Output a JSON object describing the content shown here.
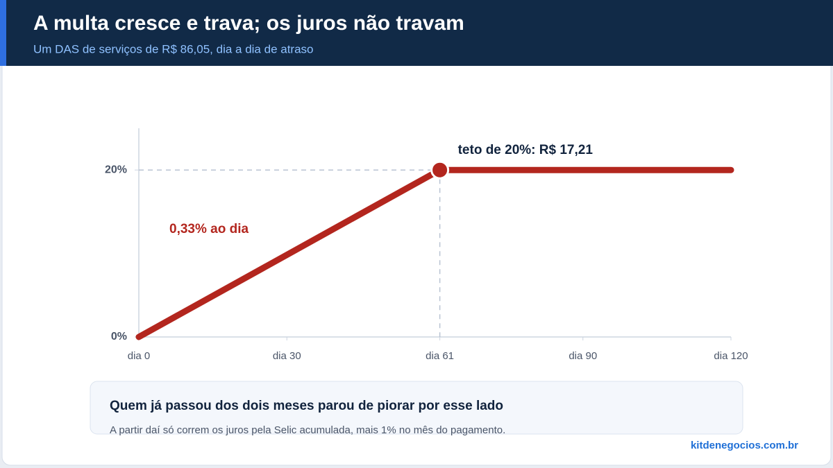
{
  "header": {
    "title": "A multa cresce e trava; os juros não travam",
    "subtitle": "Um DAS de serviços de R$ 86,05, dia a dia de atraso"
  },
  "chart_data": {
    "type": "line",
    "x": [
      0,
      61,
      120
    ],
    "values": [
      0,
      20,
      20
    ],
    "color": "#b3261e",
    "xlim": [
      0,
      120
    ],
    "ylim": [
      0,
      25
    ],
    "xticks": [
      {
        "value": 0,
        "label": "dia 0"
      },
      {
        "value": 30,
        "label": "dia 30"
      },
      {
        "value": 61,
        "label": "dia 61"
      },
      {
        "value": 90,
        "label": "dia 90"
      },
      {
        "value": 120,
        "label": "dia 120"
      }
    ],
    "yticks": [
      {
        "value": 0,
        "label": "0%"
      },
      {
        "value": 20,
        "label": "20%"
      }
    ],
    "annotations": [
      "teto de 20%: R$ 17,21",
      "0,33% ao dia"
    ]
  },
  "callout": {
    "title": "Quem já passou dos dois meses parou de piorar por esse lado",
    "text": "A partir daí só correm os juros pela Selic acumulada, mais 1% no mês do pagamento."
  },
  "footer": {
    "source": "kitdenegocios.com.br"
  }
}
